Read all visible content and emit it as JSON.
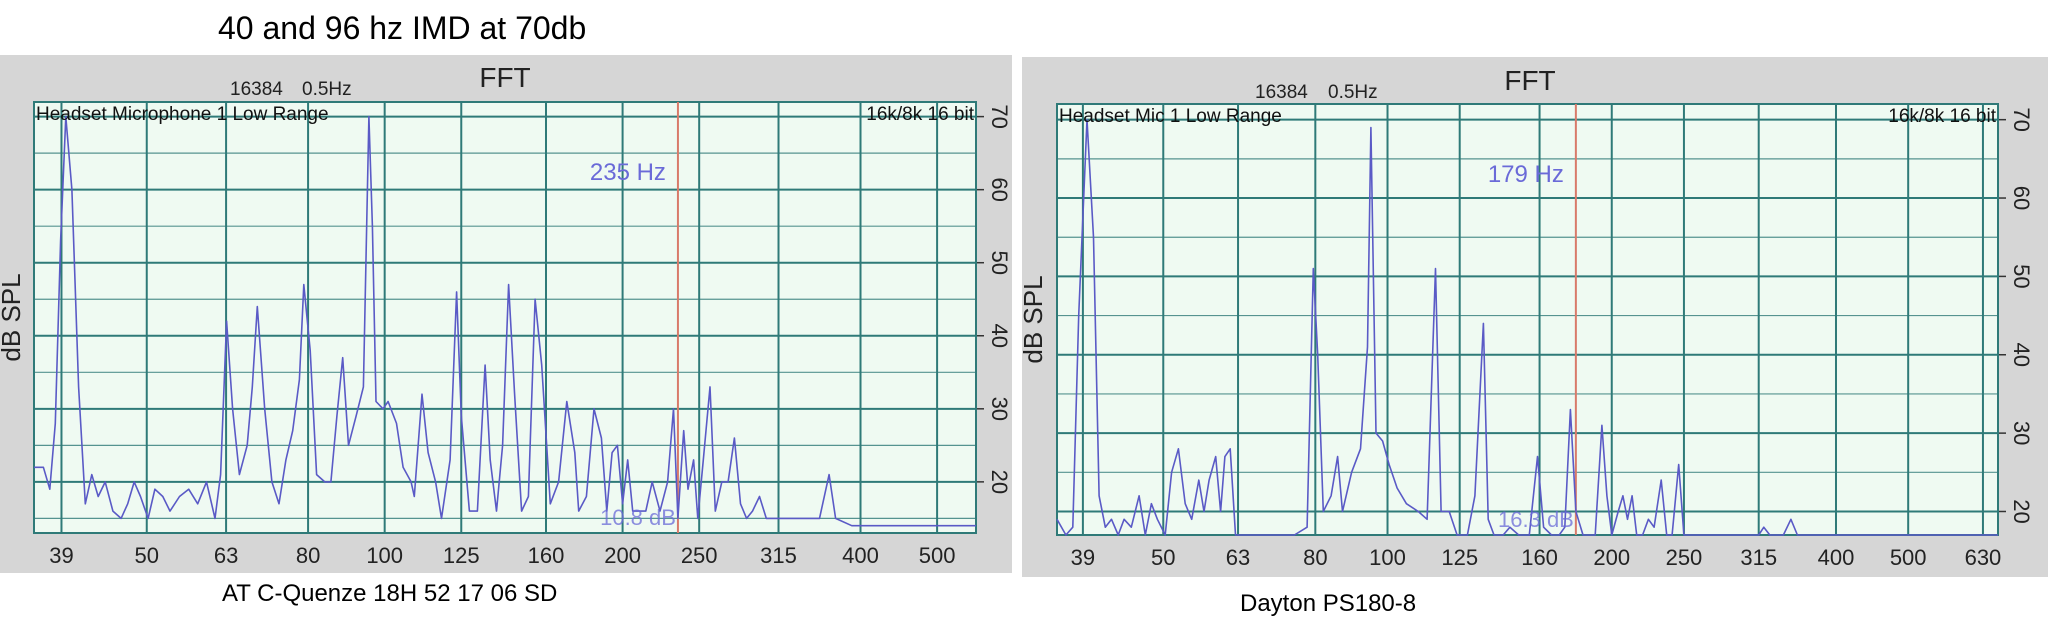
{
  "page": {
    "title": "40 and 96 hz IMD at 70db",
    "caption_left": "AT C-Quenze 18H 52 17 06 SD",
    "caption_right": "Dayton PS180-8"
  },
  "colors": {
    "panel_bg": "#d6d6d6",
    "plot_bg": "#effaf2",
    "grid": "#2f7a78",
    "trace": "#5a5ac6",
    "cursor": "#d87a6a",
    "cursor_label": "#6a6ad8"
  },
  "chart_data": [
    {
      "type": "line",
      "title": "FFT",
      "fft_size_label": "16384",
      "resolution_label": "0.5Hz",
      "source_label": "Headset Microphone 1 Low Range",
      "format_label": "16k/8k 16 bit",
      "ylabel": "dB SPL",
      "x_scale": "log",
      "xlim": [
        36,
        560
      ],
      "ylim": [
        13,
        72
      ],
      "x_ticks": [
        39,
        50,
        63,
        80,
        100,
        125,
        160,
        200,
        250,
        315,
        400,
        500
      ],
      "y_ticks": [
        20,
        30,
        40,
        50,
        60,
        70
      ],
      "grid": true,
      "cursor": {
        "freq": 235,
        "freq_label": "235 Hz",
        "level_label": "10.8 dB"
      },
      "series": [
        {
          "values": [
            [
              36,
              22
            ],
            [
              37,
              22
            ],
            [
              37.7,
              19
            ],
            [
              38.3,
              28
            ],
            [
              38.9,
              53
            ],
            [
              39.5,
              70
            ],
            [
              40.2,
              60
            ],
            [
              41,
              33
            ],
            [
              41.8,
              17
            ],
            [
              42.6,
              21
            ],
            [
              43.4,
              18
            ],
            [
              44.3,
              20
            ],
            [
              45.3,
              16
            ],
            [
              46.4,
              15
            ],
            [
              47.3,
              17
            ],
            [
              48.2,
              20
            ],
            [
              49.1,
              18
            ],
            [
              50.2,
              15
            ],
            [
              51.2,
              19
            ],
            [
              52.4,
              18
            ],
            [
              53.5,
              16
            ],
            [
              55,
              18
            ],
            [
              56.5,
              19
            ],
            [
              58,
              17
            ],
            [
              59.5,
              20
            ],
            [
              61,
              15
            ],
            [
              62,
              21
            ],
            [
              63.1,
              42
            ],
            [
              64.2,
              30
            ],
            [
              65.5,
              21
            ],
            [
              67,
              25
            ],
            [
              68,
              33
            ],
            [
              69,
              44
            ],
            [
              70.5,
              30
            ],
            [
              72,
              20
            ],
            [
              73.5,
              17
            ],
            [
              75,
              23
            ],
            [
              76.5,
              27
            ],
            [
              78,
              34
            ],
            [
              79,
              47
            ],
            [
              80.5,
              38
            ],
            [
              82,
              21
            ],
            [
              84,
              20
            ],
            [
              85.5,
              20
            ],
            [
              87,
              29
            ],
            [
              88.5,
              37
            ],
            [
              90,
              25
            ],
            [
              92,
              29
            ],
            [
              94,
              33
            ],
            [
              95.5,
              70
            ],
            [
              96.5,
              55
            ],
            [
              97.5,
              31
            ],
            [
              99.5,
              30
            ],
            [
              101,
              31
            ],
            [
              103.5,
              28
            ],
            [
              105.5,
              22
            ],
            [
              108,
              20
            ],
            [
              109,
              18
            ],
            [
              111.5,
              32
            ],
            [
              113.5,
              24
            ],
            [
              116,
              20
            ],
            [
              118,
              15
            ],
            [
              121,
              23
            ],
            [
              123.3,
              46
            ],
            [
              125,
              29
            ],
            [
              128,
              16
            ],
            [
              131,
              16
            ],
            [
              134,
              36
            ],
            [
              136,
              23
            ],
            [
              138.5,
              16
            ],
            [
              141,
              25
            ],
            [
              143.5,
              47
            ],
            [
              146,
              32
            ],
            [
              149,
              16
            ],
            [
              152,
              18
            ],
            [
              155,
              45
            ],
            [
              158,
              36
            ],
            [
              162,
              17
            ],
            [
              166,
              20
            ],
            [
              170,
              31
            ],
            [
              174,
              24
            ],
            [
              176,
              16
            ],
            [
              180,
              18
            ],
            [
              184,
              30
            ],
            [
              188,
              26
            ],
            [
              191,
              16
            ],
            [
              194,
              24
            ],
            [
              197,
              25
            ],
            [
              200,
              17
            ],
            [
              203,
              23
            ],
            [
              206,
              16
            ],
            [
              211,
              16
            ],
            [
              214,
              16
            ],
            [
              218,
              20
            ],
            [
              223,
              16
            ],
            [
              228,
              20
            ],
            [
              232,
              30
            ],
            [
              235,
              15
            ],
            [
              239,
              27
            ],
            [
              242,
              19
            ],
            [
              246,
              23
            ],
            [
              249,
              15
            ],
            [
              253,
              23
            ],
            [
              258,
              33
            ],
            [
              262,
              16
            ],
            [
              267,
              20
            ],
            [
              272,
              20
            ],
            [
              277,
              26
            ],
            [
              282,
              17
            ],
            [
              287,
              15
            ],
            [
              292,
              16
            ],
            [
              298,
              18
            ],
            [
              304,
              15
            ],
            [
              310,
              15
            ],
            [
              318,
              15
            ],
            [
              326,
              15
            ],
            [
              340,
              15
            ],
            [
              355,
              15
            ],
            [
              365,
              21
            ],
            [
              372,
              15
            ],
            [
              390,
              14
            ],
            [
              420,
              14
            ],
            [
              460,
              14
            ],
            [
              500,
              14
            ],
            [
              540,
              14
            ],
            [
              560,
              14
            ]
          ]
        }
      ]
    },
    {
      "type": "line",
      "title": "FFT",
      "fft_size_label": "16384",
      "resolution_label": "0.5Hz",
      "source_label": "Headset Mic 1 Low Range",
      "format_label": "16k/8k 16 bit",
      "ylabel": "dB SPL",
      "x_scale": "log",
      "xlim": [
        36,
        660
      ],
      "ylim": [
        17,
        72
      ],
      "x_ticks": [
        39,
        50,
        63,
        80,
        100,
        125,
        160,
        200,
        250,
        315,
        400,
        500,
        630
      ],
      "y_ticks": [
        20,
        30,
        40,
        50,
        60,
        70
      ],
      "grid": true,
      "cursor": {
        "freq": 179,
        "freq_label": "179 Hz",
        "level_label": "16.3 dB"
      },
      "series": [
        {
          "values": [
            [
              36,
              19
            ],
            [
              37,
              17
            ],
            [
              37.8,
              18
            ],
            [
              38.5,
              45
            ],
            [
              39.5,
              70
            ],
            [
              40.3,
              55
            ],
            [
              41,
              22
            ],
            [
              41.8,
              18
            ],
            [
              42.6,
              19
            ],
            [
              43.5,
              17
            ],
            [
              44.3,
              19
            ],
            [
              45.3,
              18
            ],
            [
              46.4,
              22
            ],
            [
              47.3,
              17
            ],
            [
              48.2,
              21
            ],
            [
              49.1,
              19
            ],
            [
              50.3,
              17
            ],
            [
              51.3,
              25
            ],
            [
              52.4,
              28
            ],
            [
              53.5,
              21
            ],
            [
              54.6,
              19
            ],
            [
              55.8,
              24
            ],
            [
              56.7,
              20
            ],
            [
              57.6,
              24
            ],
            [
              58.8,
              27
            ],
            [
              59.7,
              20
            ],
            [
              60.5,
              27
            ],
            [
              61.5,
              28
            ],
            [
              62.5,
              17
            ],
            [
              66,
              17
            ],
            [
              70,
              17
            ],
            [
              75,
              17
            ],
            [
              78,
              18
            ],
            [
              79.5,
              51
            ],
            [
              80.6,
              40
            ],
            [
              82,
              20
            ],
            [
              84,
              22
            ],
            [
              85.7,
              27
            ],
            [
              87,
              20
            ],
            [
              89.5,
              25
            ],
            [
              92,
              28
            ],
            [
              94,
              41
            ],
            [
              95,
              69
            ],
            [
              96.5,
              30
            ],
            [
              98.5,
              29
            ],
            [
              100.5,
              26
            ],
            [
              103,
              23
            ],
            [
              106,
              21
            ],
            [
              110,
              20
            ],
            [
              113,
              19
            ],
            [
              116,
              51
            ],
            [
              118,
              20
            ],
            [
              121,
              20
            ],
            [
              124,
              17
            ],
            [
              128,
              17
            ],
            [
              131,
              22
            ],
            [
              134.5,
              44
            ],
            [
              136.5,
              19
            ],
            [
              139,
              17
            ],
            [
              143,
              17
            ],
            [
              146,
              18
            ],
            [
              150,
              17
            ],
            [
              155,
              17
            ],
            [
              159,
              27
            ],
            [
              162,
              18
            ],
            [
              166,
              17
            ],
            [
              170,
              17
            ],
            [
              173,
              18
            ],
            [
              176,
              33
            ],
            [
              179,
              20
            ],
            [
              183,
              17
            ],
            [
              187,
              17
            ],
            [
              190,
              17
            ],
            [
              194,
              31
            ],
            [
              197,
              22
            ],
            [
              200,
              17
            ],
            [
              204,
              20
            ],
            [
              207,
              22
            ],
            [
              210,
              19
            ],
            [
              213,
              22
            ],
            [
              216,
              17
            ],
            [
              220,
              17
            ],
            [
              224,
              19
            ],
            [
              228,
              18
            ],
            [
              233,
              24
            ],
            [
              237,
              17
            ],
            [
              241,
              17
            ],
            [
              246,
              26
            ],
            [
              250,
              17
            ],
            [
              255,
              17
            ],
            [
              265,
              17
            ],
            [
              280,
              17
            ],
            [
              300,
              17
            ],
            [
              315,
              17
            ],
            [
              320,
              18
            ],
            [
              326,
              17
            ],
            [
              340,
              17
            ],
            [
              348,
              19
            ],
            [
              355,
              17
            ],
            [
              380,
              17
            ],
            [
              420,
              17
            ],
            [
              470,
              17
            ],
            [
              520,
              17
            ],
            [
              580,
              17
            ],
            [
              660,
              17
            ]
          ]
        }
      ]
    }
  ]
}
